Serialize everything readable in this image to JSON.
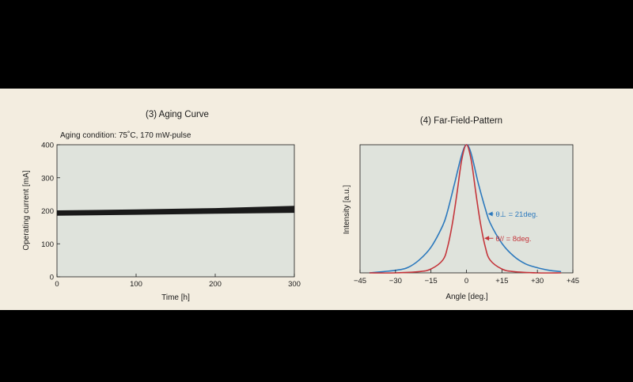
{
  "colors": {
    "background": "#000000",
    "panel": "#f3ede0",
    "plot_area": "#dfe3dc",
    "ink": "#1a1a1a",
    "perpendicular": "#2c79bd",
    "parallel": "#c4353b"
  },
  "chart_data": [
    {
      "type": "line",
      "title": "(3) Aging Curve",
      "subtitle": "Aging condition: 75˚C, 170 mW-pulse",
      "xlabel": "Time [h]",
      "ylabel": "Operating current [mA]",
      "xlim": [
        0,
        300
      ],
      "ylim": [
        0,
        400
      ],
      "xticks": [
        0,
        100,
        200,
        300
      ],
      "yticks": [
        0,
        100,
        200,
        300,
        400
      ],
      "x_tick_labels": [
        "0",
        "100",
        "200",
        "300"
      ],
      "y_tick_labels": [
        "0",
        "100",
        "200",
        "300",
        "400"
      ],
      "grid": false,
      "legend": "none",
      "series": [
        {
          "x": [
            0,
            100,
            200,
            300
          ],
          "y": [
            188,
            191,
            194,
            197
          ]
        },
        {
          "x": [
            0,
            100,
            200,
            300
          ],
          "y": [
            190,
            193,
            196,
            199
          ]
        },
        {
          "x": [
            0,
            100,
            200,
            300
          ],
          "y": [
            192,
            195,
            198,
            202
          ]
        },
        {
          "x": [
            0,
            100,
            200,
            300
          ],
          "y": [
            194,
            197,
            200,
            205
          ]
        },
        {
          "x": [
            0,
            100,
            200,
            300
          ],
          "y": [
            196,
            199,
            203,
            208
          ]
        },
        {
          "x": [
            0,
            100,
            200,
            300
          ],
          "y": [
            198,
            201,
            205,
            212
          ]
        }
      ]
    },
    {
      "type": "line",
      "title": "(4) Far-Field-Pattern",
      "xlabel": "Angle [deg.]",
      "ylabel": "Intensity [a.u.]",
      "xlim": [
        -45,
        45
      ],
      "ylim": [
        0,
        1
      ],
      "xticks": [
        -45,
        -30,
        -15,
        0,
        15,
        30,
        45
      ],
      "x_tick_labels": [
        "−45",
        "−30",
        "−15",
        "0",
        "+15",
        "+30",
        "+45"
      ],
      "grid": false,
      "legend": "annotations",
      "annotations": [
        {
          "text": "θ⊥ = 21deg.",
          "x": 10,
          "y": 0.46,
          "series": 0
        },
        {
          "text": "θ// = 8deg.",
          "x": 10,
          "y": 0.27,
          "series": 1
        }
      ],
      "series": [
        {
          "x": [
            -41,
            -35,
            -30,
            -25,
            -20,
            -15,
            -10,
            -8,
            -5,
            -2,
            0,
            2,
            5,
            8,
            10,
            15,
            20,
            25,
            30,
            35,
            40
          ],
          "y": [
            0.0,
            0.01,
            0.02,
            0.04,
            0.1,
            0.2,
            0.37,
            0.48,
            0.7,
            0.92,
            1.0,
            0.93,
            0.7,
            0.5,
            0.39,
            0.23,
            0.13,
            0.07,
            0.04,
            0.02,
            0.01
          ],
          "color": "#2c79bd"
        },
        {
          "x": [
            -41,
            -30,
            -20,
            -15,
            -10,
            -8,
            -6,
            -4,
            -2,
            0,
            2,
            4,
            6,
            8,
            10,
            15,
            20,
            30,
            40
          ],
          "y": [
            0.0,
            0.0,
            0.01,
            0.03,
            0.1,
            0.2,
            0.38,
            0.62,
            0.88,
            1.0,
            0.88,
            0.62,
            0.38,
            0.2,
            0.1,
            0.03,
            0.01,
            0.0,
            0.0
          ],
          "color": "#c4353b"
        }
      ]
    }
  ]
}
